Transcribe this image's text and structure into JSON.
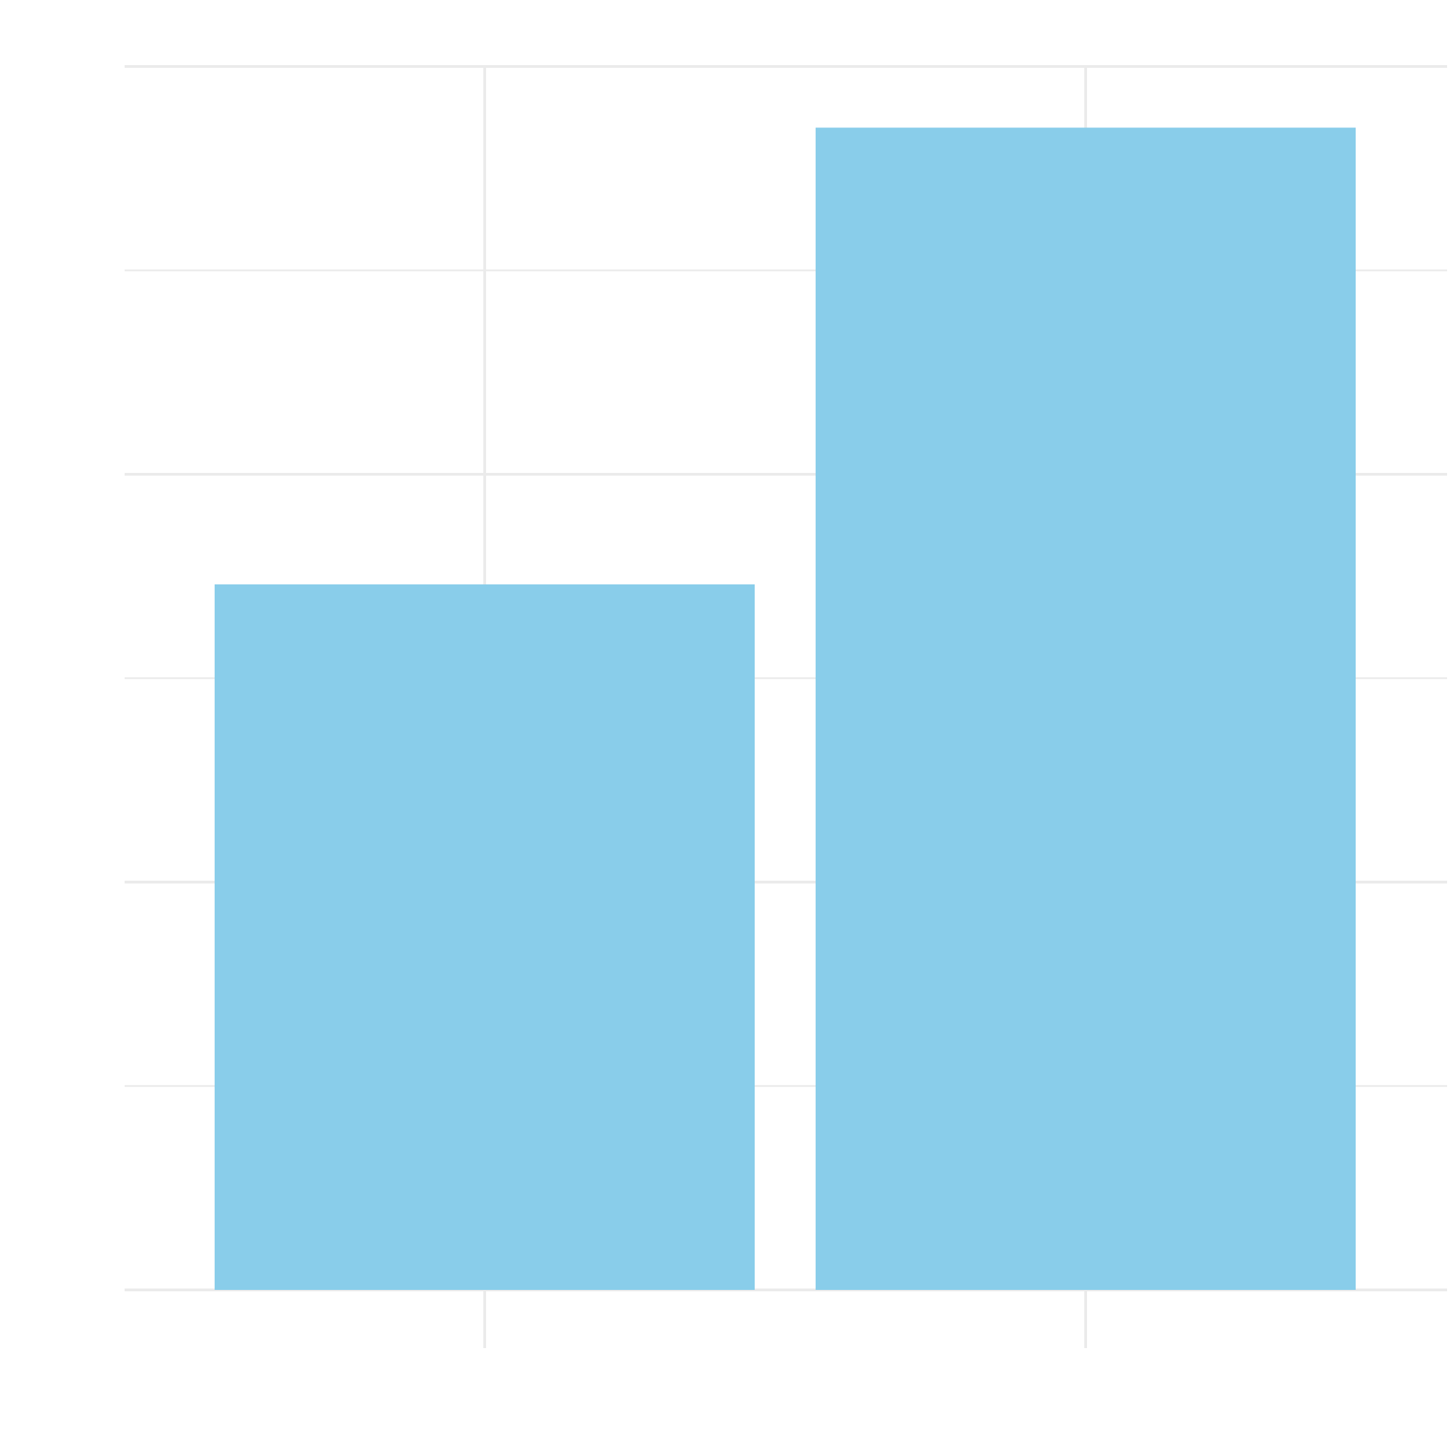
{
  "chart_data": {
    "type": "bar",
    "categories": [
      "",
      ""
    ],
    "values": [
      3.46,
      5.7
    ],
    "title": "",
    "xlabel": "",
    "ylabel": "",
    "ylim": [
      0,
      6
    ],
    "y_major_ticks": [
      0,
      2,
      4,
      6
    ],
    "y_minor_ticks": [
      1,
      3,
      5
    ],
    "grid": true,
    "bar_color": "#89CDEA",
    "grid_color": "#EBEBEB",
    "background": "#FFFFFF"
  }
}
